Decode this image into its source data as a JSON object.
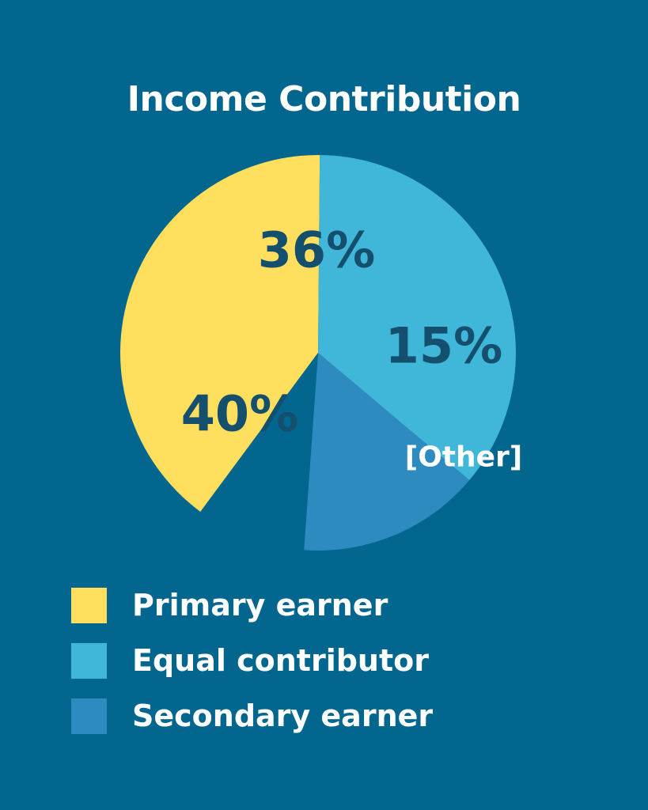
{
  "chart_data": {
    "type": "pie",
    "title": "Income Contribution",
    "slices": [
      {
        "name": "Primary earner",
        "value": 40,
        "label": "40%",
        "color": "#ffdf5d"
      },
      {
        "name": "Equal contributor",
        "value": 36,
        "label": "36%",
        "color": "#40b6d8"
      },
      {
        "name": "Secondary earner",
        "value": 15,
        "label": "15%",
        "color": "#2e8bbf"
      },
      {
        "name": "[Other]",
        "value": 9,
        "label": "[Other]",
        "color": "#02668f"
      }
    ],
    "legend_position": "bottom-left"
  },
  "colors": {
    "background": "#02668f",
    "value_label": "#14506e"
  }
}
